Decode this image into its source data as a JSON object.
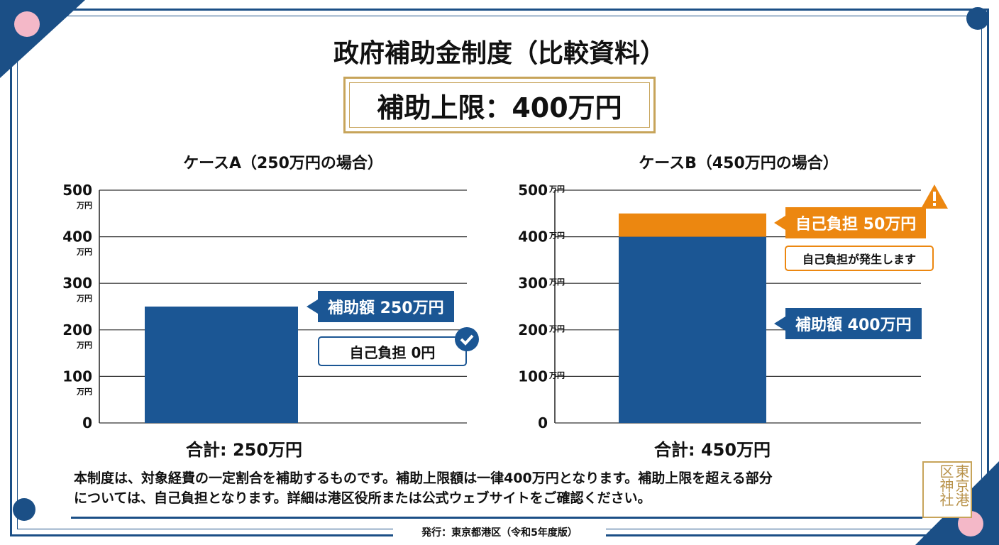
{
  "title": "政府補助金制度（比較資料）",
  "limit_box": "補助上限：400万円",
  "colors": {
    "subsidy": "#1b5694",
    "self_pay": "#ec8710",
    "accent_gold": "#c7a45a",
    "frame": "#1b4f86"
  },
  "chart_data": [
    {
      "type": "bar",
      "title": "ケースA（250万円の場合）",
      "unit": "万円",
      "ylim": [
        0,
        500
      ],
      "yticks": [
        0,
        100,
        200,
        300,
        400,
        500
      ],
      "grid": true,
      "series": [
        {
          "name": "補助額",
          "values": [
            250
          ]
        },
        {
          "name": "自己負担",
          "values": [
            0
          ]
        }
      ],
      "labels": {
        "subsidy": "補助額 250万円",
        "self_pay": "自己負担 0円"
      },
      "total": "合計: 250万円",
      "icon": "check-circle-icon"
    },
    {
      "type": "bar",
      "title": "ケースB（450万円の場合）",
      "unit": "万円",
      "ylim": [
        0,
        500
      ],
      "yticks": [
        0,
        100,
        200,
        300,
        400,
        500
      ],
      "grid": true,
      "series": [
        {
          "name": "補助額",
          "values": [
            400
          ]
        },
        {
          "name": "自己負担",
          "values": [
            50
          ]
        }
      ],
      "labels": {
        "subsidy": "補助額 400万円",
        "self_pay": "自己負担 50万円",
        "warning": "自己負担が発生します"
      },
      "total": "合計: 450万円",
      "icon": "warning-icon"
    }
  ],
  "description": [
    "本制度は、対象経費の一定割合を補助するものです。補助上限額は一律400万円となります。補助上限を超える部分",
    "については、自己負担となります。詳細は港区役所または公式ウェブサイトをご確認ください。"
  ],
  "publisher": "発行：東京都港区（令和5年度版）",
  "seal": "東京港区神社"
}
